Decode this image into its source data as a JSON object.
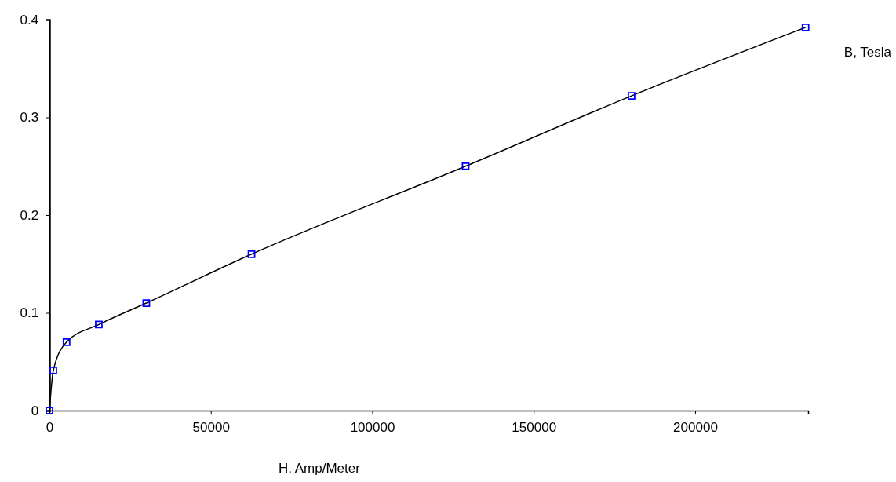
{
  "chart_data": {
    "type": "line",
    "xlabel": "H, Amp/Meter",
    "ylabel": "B, Tesla",
    "xlim": [
      0,
      235000
    ],
    "xticks": [
      0,
      50000,
      100000,
      150000,
      200000
    ],
    "ylim": [
      0,
      0.4
    ],
    "yticks": [
      0,
      0.1,
      0.2,
      0.3,
      0.4
    ],
    "grid": false,
    "x": [
      0,
      1200,
      5300,
      15300,
      30000,
      62600,
      128900,
      180300,
      234200
    ],
    "series": [
      {
        "color": "#000000",
        "marker": "none",
        "values": [
          0,
          0.041,
          0.07,
          0.088,
          0.11,
          0.16,
          0.25,
          0.322,
          0.392
        ]
      },
      {
        "type": "scatter",
        "color": "#0000ff",
        "marker": "square",
        "values": [
          0,
          0.041,
          0.07,
          0.088,
          0.11,
          0.16,
          0.25,
          0.322,
          0.392
        ]
      }
    ]
  }
}
